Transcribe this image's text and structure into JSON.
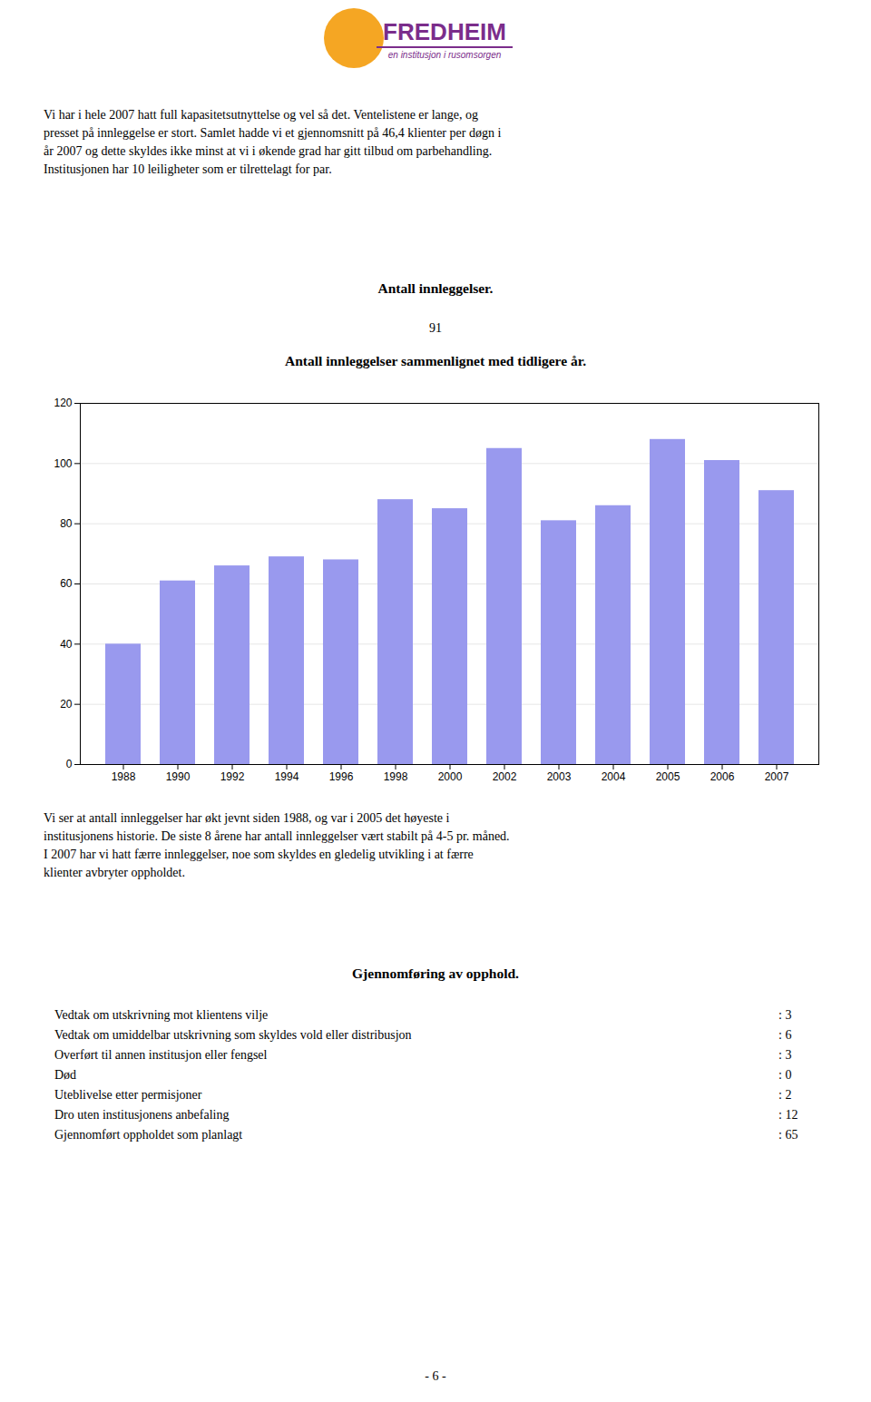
{
  "logo": {
    "name": "FREDHEIM",
    "tagline": "en institusjon i rusomsorgen",
    "color": "#7B2D8B",
    "accent": "#F5A623"
  },
  "paragraph1": [
    "Vi har i hele 2007 hatt full kapasitetsutnyttelse og vel så det. Ventelistene er lange, og",
    "presset på innleggelse er stort. Samlet hadde vi et gjennomsnitt på 46,4 klienter per døgn i",
    "år 2007 og dette skyldes ikke minst at vi i økende grad har gitt tilbud om parbehandling.",
    "Institusjonen har 10 leiligheter som er tilrettelagt for par."
  ],
  "heading1": "Antall innleggelser.",
  "number_display": "91",
  "chart_data": {
    "type": "bar",
    "title": "Antall innleggelser sammenlignet med tidligere år.",
    "categories": [
      "1988",
      "1990",
      "1992",
      "1994",
      "1996",
      "1998",
      "2000",
      "2002",
      "2003",
      "2004",
      "2005",
      "2006",
      "2007"
    ],
    "values": [
      40,
      61,
      66,
      69,
      68,
      88,
      85,
      105,
      81,
      86,
      108,
      101,
      91
    ],
    "color": "#9999ee",
    "ylim": [
      0,
      120
    ],
    "yticks": [
      0,
      20,
      40,
      60,
      80,
      100,
      120
    ],
    "grid": true
  },
  "paragraph2": [
    "Vi ser at antall innleggelser har økt jevnt siden 1988, og var i 2005 det høyeste i",
    "institusjonens historie. De siste 8 årene har antall innleggelser vært stabilt på 4-5 pr. måned.",
    "I 2007 har vi hatt færre innleggelser, noe som skyldes en gledelig utvikling i at færre",
    "klienter avbryter oppholdet."
  ],
  "heading3": "Gjennomføring av opphold.",
  "table": [
    [
      "Vedtak om utskrivning mot klientens vilje",
      ": 3"
    ],
    [
      "Vedtak om umiddelbar utskrivning som skyldes vold eller distribusjon",
      ": 6"
    ],
    [
      "Overført til annen institusjon eller fengsel",
      ": 3"
    ],
    [
      "Død",
      ": 0"
    ],
    [
      "Uteblivelse etter permisjoner",
      ": 2"
    ],
    [
      "Dro uten institusjonens anbefaling",
      ": 12"
    ],
    [
      "Gjennomført oppholdet som planlagt",
      ": 65"
    ]
  ],
  "footer": "- 6 -"
}
